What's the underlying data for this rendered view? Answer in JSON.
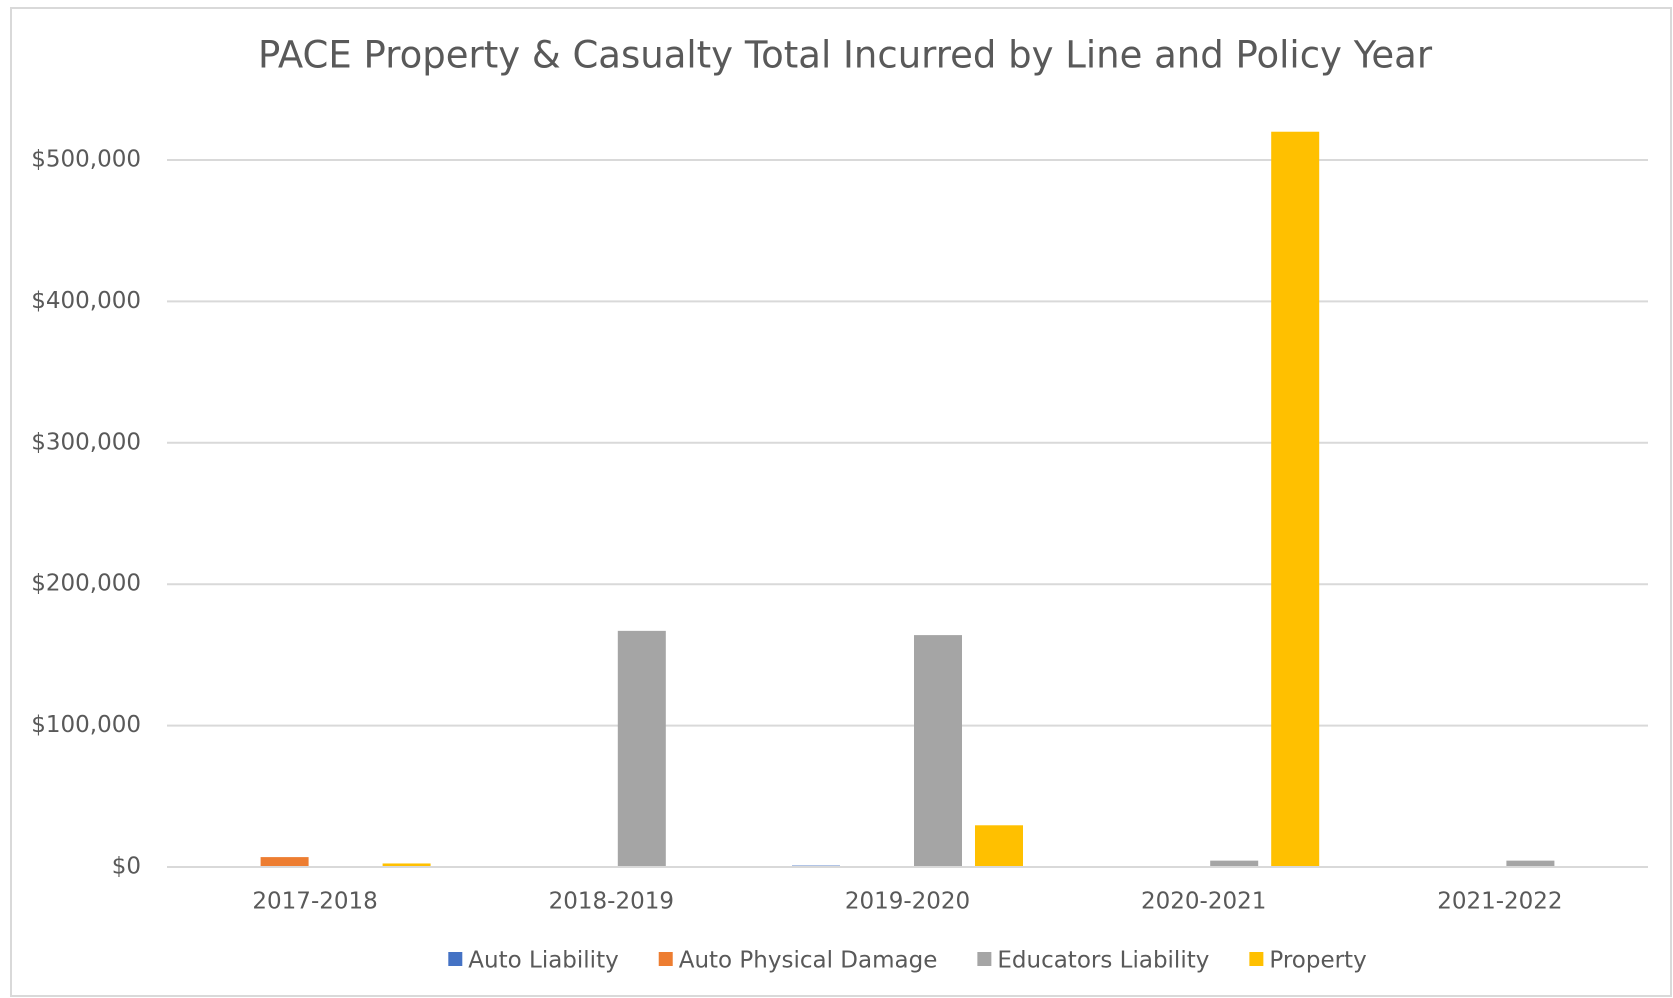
{
  "chart_data": {
    "type": "bar",
    "title": "PACE Property & Casualty Total Incurred by Line and Policy Year",
    "categories": [
      "2017-2018",
      "2018-2019",
      "2019-2020",
      "2020-2021",
      "2021-2022"
    ],
    "series": [
      {
        "name": "Auto Liability",
        "color": "#4472c4",
        "values": [
          0,
          0,
          1000,
          0,
          0
        ]
      },
      {
        "name": "Auto Physical Damage",
        "color": "#ed7d31",
        "values": [
          7000,
          0,
          0,
          0,
          0
        ]
      },
      {
        "name": "Educators Liability",
        "color": "#a5a5a5",
        "values": [
          0,
          167000,
          164000,
          4500,
          4500
        ]
      },
      {
        "name": "Property",
        "color": "#ffc000",
        "values": [
          2500,
          0,
          29500,
          520000,
          0
        ]
      }
    ],
    "ylim": [
      0,
      500000
    ],
    "yticks": [
      {
        "value": 0,
        "label": "$0"
      },
      {
        "value": 100000,
        "label": "$100,000"
      },
      {
        "value": 200000,
        "label": "$200,000"
      },
      {
        "value": 300000,
        "label": "$300,000"
      },
      {
        "value": 400000,
        "label": "$400,000"
      },
      {
        "value": 500000,
        "label": "$500,000"
      }
    ],
    "grid": true,
    "legend": "bottom"
  }
}
